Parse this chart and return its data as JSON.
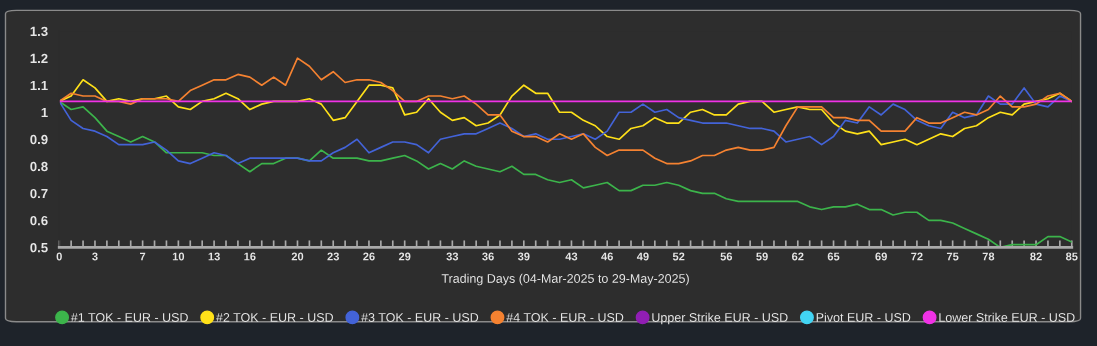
{
  "chart_data": {
    "type": "line",
    "xlabel": "Trading Days (04-Mar-2025 to 29-May-2025)",
    "x": [
      0,
      1,
      2,
      3,
      4,
      5,
      6,
      7,
      8,
      9,
      10,
      11,
      12,
      13,
      14,
      15,
      16,
      17,
      18,
      19,
      20,
      21,
      22,
      23,
      24,
      25,
      26,
      27,
      28,
      29,
      30,
      31,
      32,
      33,
      34,
      35,
      36,
      37,
      38,
      39,
      40,
      41,
      42,
      43,
      44,
      45,
      46,
      47,
      48,
      49,
      50,
      51,
      52,
      53,
      54,
      55,
      56,
      57,
      58,
      59,
      60,
      61,
      62,
      63,
      64,
      65,
      66,
      67,
      68,
      69,
      70,
      71,
      72,
      73,
      74,
      75,
      76,
      77,
      78,
      79,
      80,
      81,
      82,
      83,
      84,
      85
    ],
    "xlim": [
      0,
      85
    ],
    "xticks": [
      0,
      3,
      7,
      10,
      13,
      16,
      20,
      23,
      26,
      29,
      33,
      36,
      39,
      43,
      46,
      49,
      52,
      56,
      59,
      62,
      65,
      69,
      72,
      75,
      78,
      82,
      85
    ],
    "ylim": [
      0.5,
      1.3
    ],
    "yticks": [
      0.5,
      0.6,
      0.7,
      0.8,
      0.9,
      1,
      1.1,
      1.2,
      1.3
    ],
    "grid": false,
    "legend": "bottom",
    "marker": "none",
    "line_style": "solid",
    "series": [
      {
        "name": "#1 TOK - EUR - USD",
        "color": "#3cb44b",
        "values": [
          1.04,
          1.01,
          1.02,
          0.98,
          0.93,
          0.91,
          0.89,
          0.91,
          0.89,
          0.85,
          0.85,
          0.85,
          0.85,
          0.84,
          0.84,
          0.81,
          0.78,
          0.81,
          0.81,
          0.83,
          0.83,
          0.82,
          0.86,
          0.83,
          0.83,
          0.83,
          0.82,
          0.82,
          0.83,
          0.84,
          0.82,
          0.79,
          0.81,
          0.79,
          0.82,
          0.8,
          0.79,
          0.78,
          0.8,
          0.77,
          0.77,
          0.75,
          0.74,
          0.75,
          0.72,
          0.73,
          0.74,
          0.71,
          0.71,
          0.73,
          0.73,
          0.74,
          0.73,
          0.71,
          0.7,
          0.7,
          0.68,
          0.67,
          0.67,
          0.67,
          0.67,
          0.67,
          0.67,
          0.65,
          0.64,
          0.65,
          0.65,
          0.66,
          0.64,
          0.64,
          0.62,
          0.63,
          0.63,
          0.6,
          0.6,
          0.59,
          0.57,
          0.55,
          0.53,
          0.5,
          0.51,
          0.51,
          0.51,
          0.54,
          0.54,
          0.52
        ]
      },
      {
        "name": "#2 TOK - EUR - USD",
        "color": "#ffe119",
        "values": [
          1.04,
          1.06,
          1.12,
          1.09,
          1.04,
          1.05,
          1.04,
          1.05,
          1.05,
          1.06,
          1.02,
          1.01,
          1.04,
          1.05,
          1.07,
          1.05,
          1.01,
          1.03,
          1.04,
          1.04,
          1.04,
          1.05,
          1.03,
          0.97,
          0.98,
          1.04,
          1.1,
          1.1,
          1.09,
          0.99,
          1.0,
          1.05,
          1.0,
          0.97,
          0.98,
          0.95,
          0.96,
          0.99,
          1.06,
          1.1,
          1.07,
          1.07,
          1.0,
          1.0,
          0.97,
          0.95,
          0.91,
          0.9,
          0.94,
          0.95,
          0.98,
          0.96,
          0.96,
          1.0,
          1.01,
          0.99,
          0.99,
          1.03,
          1.04,
          1.04,
          1.0,
          1.01,
          1.02,
          1.01,
          1.01,
          0.96,
          0.93,
          0.92,
          0.93,
          0.88,
          0.89,
          0.9,
          0.88,
          0.9,
          0.92,
          0.91,
          0.94,
          0.95,
          0.98,
          1.0,
          0.99,
          1.03,
          1.04,
          1.05,
          1.07,
          1.04
        ]
      },
      {
        "name": "#3 TOK - EUR - USD",
        "color": "#4363d8",
        "values": [
          1.04,
          0.97,
          0.94,
          0.93,
          0.91,
          0.88,
          0.88,
          0.88,
          0.89,
          0.86,
          0.82,
          0.81,
          0.83,
          0.85,
          0.84,
          0.81,
          0.83,
          0.83,
          0.83,
          0.83,
          0.83,
          0.82,
          0.82,
          0.85,
          0.87,
          0.9,
          0.85,
          0.87,
          0.89,
          0.89,
          0.88,
          0.85,
          0.9,
          0.91,
          0.92,
          0.92,
          0.94,
          0.96,
          0.94,
          0.91,
          0.92,
          0.9,
          0.9,
          0.91,
          0.92,
          0.9,
          0.93,
          1.0,
          1.0,
          1.03,
          1.0,
          1.01,
          0.98,
          0.97,
          0.96,
          0.96,
          0.96,
          0.95,
          0.94,
          0.94,
          0.93,
          0.89,
          0.9,
          0.91,
          0.88,
          0.91,
          0.97,
          0.96,
          1.02,
          0.99,
          1.03,
          1.01,
          0.97,
          0.95,
          0.94,
          1.0,
          0.98,
          0.99,
          1.06,
          1.03,
          1.03,
          1.09,
          1.03,
          1.02,
          1.06,
          1.04
        ]
      },
      {
        "name": "#4 TOK - EUR - USD",
        "color": "#f58231",
        "values": [
          1.04,
          1.07,
          1.06,
          1.06,
          1.04,
          1.04,
          1.03,
          1.05,
          1.05,
          1.05,
          1.04,
          1.08,
          1.1,
          1.12,
          1.12,
          1.14,
          1.13,
          1.1,
          1.13,
          1.1,
          1.2,
          1.17,
          1.12,
          1.15,
          1.11,
          1.12,
          1.12,
          1.11,
          1.08,
          1.04,
          1.04,
          1.06,
          1.06,
          1.05,
          1.06,
          1.03,
          0.99,
          0.99,
          0.93,
          0.91,
          0.91,
          0.89,
          0.92,
          0.9,
          0.92,
          0.87,
          0.84,
          0.86,
          0.86,
          0.86,
          0.83,
          0.81,
          0.81,
          0.82,
          0.84,
          0.84,
          0.86,
          0.87,
          0.86,
          0.86,
          0.87,
          0.95,
          1.02,
          1.02,
          1.02,
          0.98,
          0.98,
          0.97,
          0.97,
          0.93,
          0.93,
          0.93,
          0.98,
          0.96,
          0.96,
          0.98,
          1.0,
          0.99,
          1.01,
          1.06,
          1.02,
          1.02,
          1.03,
          1.06,
          1.07,
          1.04
        ]
      },
      {
        "name": "Upper Strike EUR - USD",
        "color": "#911eb4",
        "values": [
          null,
          null,
          null,
          null,
          null,
          null,
          null,
          null,
          null,
          null,
          null,
          null,
          null,
          null,
          null,
          null,
          null,
          null,
          null,
          null,
          null,
          null,
          null,
          null,
          null,
          null,
          null,
          null,
          null,
          null,
          null,
          null,
          null,
          null,
          null,
          null,
          null,
          null,
          null,
          null,
          null,
          null,
          null,
          null,
          null,
          null,
          null,
          null,
          null,
          null,
          null,
          null,
          null,
          null,
          null,
          null,
          null,
          null,
          null,
          null,
          null,
          null,
          null,
          null,
          null,
          null,
          null,
          null,
          null,
          null,
          null,
          null,
          null,
          null,
          null,
          null,
          null,
          null,
          null,
          null,
          null,
          null,
          null,
          null,
          null,
          null
        ]
      },
      {
        "name": "Pivot EUR - USD",
        "color": "#42d4f4",
        "values": [
          null,
          null,
          null,
          null,
          null,
          null,
          null,
          null,
          null,
          null,
          null,
          null,
          null,
          null,
          null,
          null,
          null,
          null,
          null,
          null,
          null,
          null,
          null,
          null,
          null,
          null,
          null,
          null,
          null,
          null,
          null,
          null,
          null,
          null,
          null,
          null,
          null,
          null,
          null,
          null,
          null,
          null,
          null,
          null,
          null,
          null,
          null,
          null,
          null,
          null,
          null,
          null,
          null,
          null,
          null,
          null,
          null,
          null,
          null,
          null,
          null,
          null,
          null,
          null,
          null,
          null,
          null,
          null,
          null,
          null,
          null,
          null,
          null,
          null,
          null,
          null,
          null,
          null,
          null,
          null,
          null,
          null,
          null,
          null,
          null,
          null
        ]
      },
      {
        "name": "Lower Strike EUR - USD",
        "color": "#f032e6",
        "x": [
          0,
          85
        ],
        "values": [
          1.04,
          1.04
        ]
      }
    ]
  }
}
